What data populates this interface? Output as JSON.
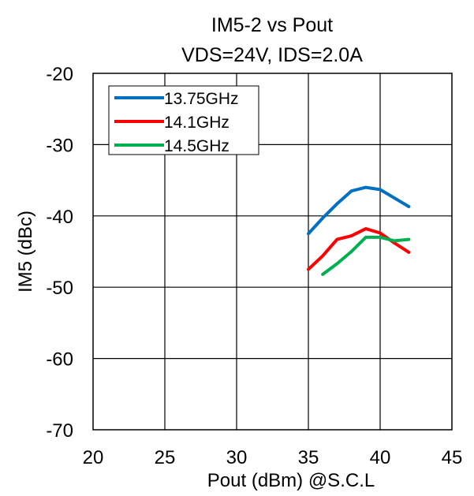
{
  "chart_data": {
    "type": "line",
    "title": "IM5-2 vs Pout",
    "subtitle": "VDS=24V, IDS=2.0A",
    "xlabel": "Pout (dBm) @S.C.L",
    "ylabel": "IM5 (dBc)",
    "xlim": [
      20,
      45
    ],
    "ylim": [
      -70,
      -20
    ],
    "xticks": [
      20,
      25,
      30,
      35,
      40,
      45
    ],
    "yticks": [
      -20,
      -30,
      -40,
      -50,
      -60,
      -70
    ],
    "grid": true,
    "legend_position": "top-left",
    "series": [
      {
        "name": "13.75GHz",
        "color": "#0070C0",
        "x": [
          35,
          36,
          37,
          38,
          39,
          40,
          41,
          42
        ],
        "y": [
          -42.5,
          -40.3,
          -38.3,
          -36.5,
          -36.0,
          -36.3,
          -37.5,
          -38.7
        ]
      },
      {
        "name": "14.1GHz",
        "color": "#FF0000",
        "x": [
          35,
          36,
          37,
          38,
          39,
          40,
          41,
          42
        ],
        "y": [
          -47.5,
          -45.6,
          -43.3,
          -42.8,
          -41.8,
          -42.4,
          -43.8,
          -45.1
        ]
      },
      {
        "name": "14.5GHz",
        "color": "#00B050",
        "x": [
          36,
          37,
          38,
          39,
          40,
          41,
          42
        ],
        "y": [
          -48.2,
          -46.7,
          -45.0,
          -43.0,
          -43.0,
          -43.5,
          -43.3
        ]
      }
    ]
  }
}
